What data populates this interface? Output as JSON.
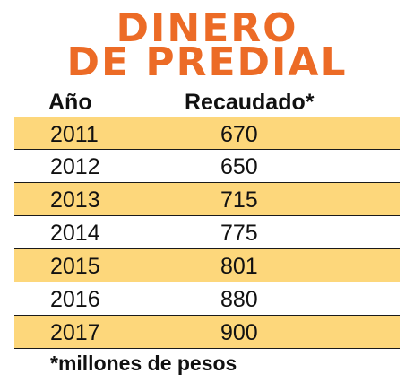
{
  "title_line1": "DINERO",
  "title_line2": "DE PREDIAL",
  "colors": {
    "title": "#ec6b26",
    "row_shade": "#fdd77b",
    "text": "#111111"
  },
  "chart_data": {
    "type": "table",
    "columns": [
      "Año",
      "Recaudado*"
    ],
    "rows": [
      {
        "year": "2011",
        "value": "670"
      },
      {
        "year": "2012",
        "value": "650"
      },
      {
        "year": "2013",
        "value": "715"
      },
      {
        "year": "2014",
        "value": "775"
      },
      {
        "year": "2015",
        "value": "801"
      },
      {
        "year": "2016",
        "value": "880"
      },
      {
        "year": "2017",
        "value": "900"
      }
    ],
    "footnote": "*millones de pesos"
  }
}
